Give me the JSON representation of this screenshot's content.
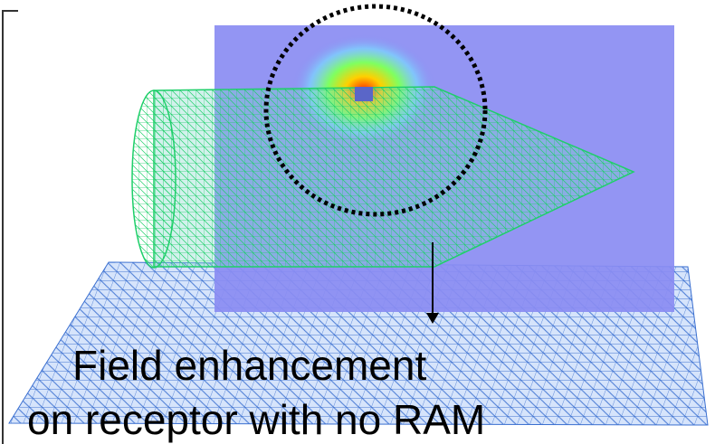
{
  "caption": {
    "lines": [
      "Field enhancement",
      "on receptor with no RAM"
    ]
  }
}
